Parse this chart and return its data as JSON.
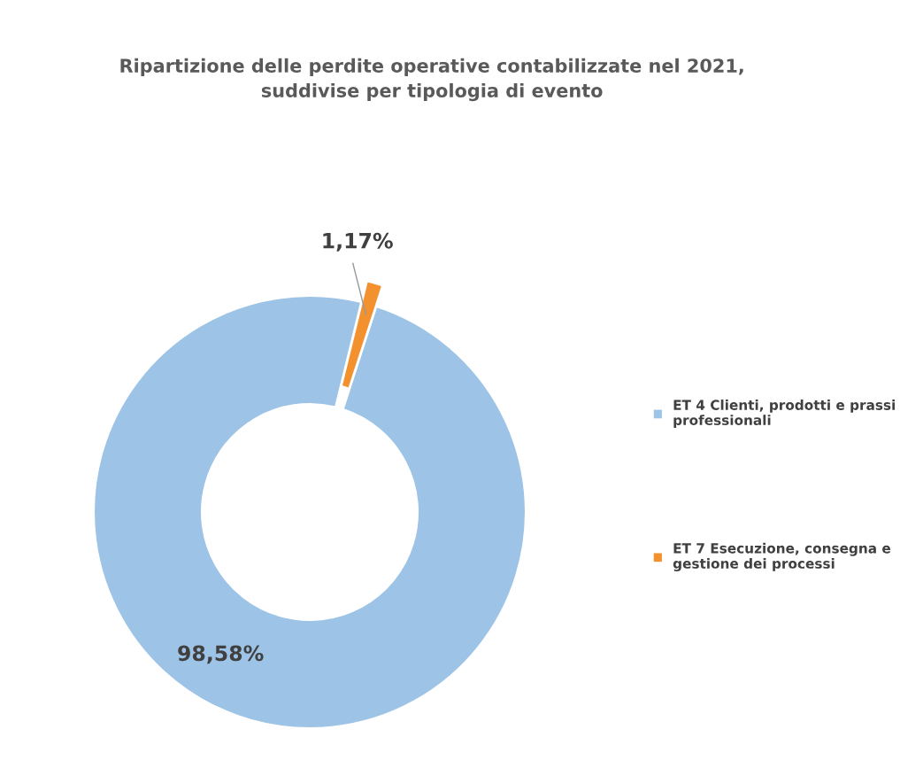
{
  "chart_data": {
    "type": "donut",
    "title": "Ripartizione delle perdite operative contabilizzate nel 2021,\nsuddivise per tipologia di evento",
    "categories": [
      "ET 4 Clienti, prodotti e prassi\nprofessionali",
      "ET 7 Esecuzione, consegna e\ngestione dei processi"
    ],
    "values": [
      98.58,
      1.17
    ],
    "colors": [
      "#9dc3e6",
      "#f4912f"
    ],
    "value_labels": [
      "98,58%",
      "1,17%"
    ],
    "legend": "right"
  }
}
